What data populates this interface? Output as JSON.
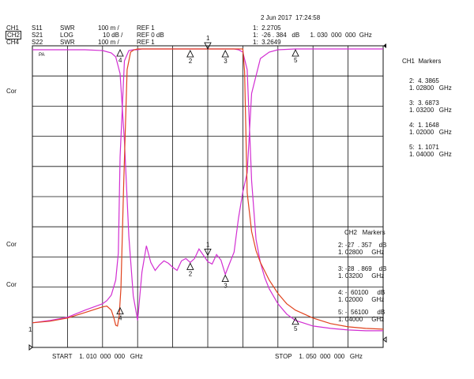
{
  "header": {
    "datetime": "2 Jun 2017  17:24:58",
    "marker_line1": "1:  2.2705",
    "marker_line2": "1:  -26 . 384   dB      1. 030  000  000  GHz",
    "marker_line3": "1:  3.2649"
  },
  "channels": [
    {
      "ch": "CH1",
      "param": "S11",
      "fmt": "SWR",
      "scale": "100 m /",
      "ref": "REF 1",
      "boxed": false
    },
    {
      "ch": "CH2",
      "param": "S21",
      "fmt": "LOG",
      "scale": "10 dB /",
      "ref": "REF 0 dB",
      "boxed": true
    },
    {
      "ch": "CH4",
      "param": "S22",
      "fmt": "SWR",
      "scale": "100 m /",
      "ref": "REF 1",
      "boxed": false
    }
  ],
  "side_labels": {
    "cor1": "Cor",
    "cor2": "Cor",
    "cor3": "Cor",
    "ref_one": "1",
    "pa": "PA"
  },
  "ch1_markers": {
    "title": "CH1  Markers",
    "entries": [
      {
        "a": "2:  4. 3865",
        "b": "1. 02800   GHz"
      },
      {
        "a": "3:  3. 6873",
        "b": "1. 03200   GHz"
      },
      {
        "a": "4:  1. 1648",
        "b": "1. 02000   GHz"
      },
      {
        "a": "5:  1. 1071",
        "b": "1. 04000   GHz"
      }
    ]
  },
  "ch2_markers": {
    "title": "CH2   Markers",
    "entries": [
      {
        "a": "2: -27  . 357    dB",
        "b": "1. 02800     GHz"
      },
      {
        "a": "3: -28  . 869    dB",
        "b": "1. 03200     GHz"
      },
      {
        "a": "4: -. 60100     dB",
        "b": "1. 02000     GHz"
      },
      {
        "a": "5: -. 56100     dB",
        "b": "1. 04000     GHz"
      }
    ]
  },
  "footer": {
    "start": "START    1. 010  000  000   GHz",
    "stop": "STOP    1. 050  000  000   GHz"
  },
  "colors": {
    "grid": "#111111",
    "magenta": "#d22ed2",
    "red": "#e0431e",
    "text": "#111111"
  },
  "chart_data": {
    "type": "line",
    "x_range_ghz": [
      1.01,
      1.05
    ],
    "grid": true,
    "divisions": {
      "x": 10,
      "y": 10
    },
    "series": [
      {
        "name": "S21",
        "color": "magenta",
        "x": [
          1.01,
          1.012,
          1.014,
          1.016,
          1.018,
          1.0185,
          1.019,
          1.0195,
          1.0198,
          1.02,
          1.0205,
          1.021,
          1.0215,
          1.022,
          1.0225,
          1.023,
          1.0235,
          1.024,
          1.0245,
          1.025,
          1.0255,
          1.026,
          1.0265,
          1.027,
          1.0275,
          1.028,
          1.0285,
          1.029,
          1.0295,
          1.03,
          1.0305,
          1.031,
          1.0315,
          1.032,
          1.0325,
          1.033,
          1.0335,
          1.034,
          1.0345,
          1.035,
          1.0355,
          1.036,
          1.0365,
          1.037,
          1.038,
          1.039,
          1.04,
          1.042,
          1.044,
          1.046,
          1.048,
          1.05
        ],
        "y": [
          -34.9,
          -34.6,
          -34.2,
          -33.3,
          -32.5,
          -32.1,
          -31.4,
          -29.5,
          -26.1,
          -14.0,
          -1.9,
          -0.6,
          -0.5,
          -0.5,
          -0.4,
          -0.4,
          -0.4,
          -0.4,
          -0.4,
          -0.4,
          -0.4,
          -0.4,
          -0.4,
          -0.4,
          -0.4,
          -0.4,
          -0.4,
          -0.4,
          -0.4,
          -0.4,
          -0.4,
          -0.4,
          -0.4,
          -0.4,
          -0.4,
          -0.4,
          -0.5,
          -0.8,
          -3.0,
          -17.0,
          -24.4,
          -27.3,
          -29.2,
          -30.6,
          -32.5,
          -33.8,
          -34.6,
          -35.3,
          -35.6,
          -35.8,
          -35.9,
          -35.9
        ]
      },
      {
        "name": "S11",
        "color": "magenta",
        "x": [
          1.01,
          1.012,
          1.014,
          1.016,
          1.018,
          1.019,
          1.0195,
          1.02,
          1.0205,
          1.021,
          1.0215,
          1.022,
          1.0225,
          1.023,
          1.0235,
          1.024,
          1.0245,
          1.025,
          1.0255,
          1.026,
          1.0265,
          1.027,
          1.0275,
          1.028,
          1.0285,
          1.029,
          1.0295,
          1.03,
          1.0305,
          1.031,
          1.0315,
          1.032,
          1.0325,
          1.033,
          1.0335,
          1.034,
          1.0345,
          1.035,
          1.036,
          1.037,
          1.038,
          1.04,
          1.042,
          1.044,
          1.046,
          1.048,
          1.05
        ],
        "y": [
          -0.5,
          -0.5,
          -0.5,
          -0.5,
          -0.6,
          -0.9,
          -1.4,
          -3.5,
          -12.0,
          -24.0,
          -31.5,
          -34.6,
          -28.5,
          -25.2,
          -27.3,
          -28.3,
          -27.6,
          -27.1,
          -27.4,
          -27.9,
          -28.3,
          -27.1,
          -26.8,
          -27.3,
          -26.8,
          -25.6,
          -26.4,
          -27.2,
          -27.5,
          -26.3,
          -27.0,
          -28.8,
          -27.4,
          -26.0,
          -21.7,
          -18.4,
          -16.0,
          -6.0,
          -1.6,
          -0.8,
          -0.5,
          -0.4,
          -0.4,
          -0.4,
          -0.4,
          -0.4,
          -0.4
        ]
      },
      {
        "name": "S22",
        "color": "red",
        "x": [
          1.01,
          1.012,
          1.014,
          1.016,
          1.018,
          1.0185,
          1.019,
          1.0193,
          1.0195,
          1.0197,
          1.0199,
          1.0201,
          1.0204,
          1.0208,
          1.0212,
          1.0216,
          1.022,
          1.024,
          1.028,
          1.032,
          1.034,
          1.0342,
          1.0345,
          1.035,
          1.0355,
          1.036,
          1.037,
          1.038,
          1.039,
          1.04,
          1.042,
          1.044,
          1.046,
          1.048,
          1.05
        ],
        "y": [
          -34.9,
          -34.7,
          -34.3,
          -33.6,
          -32.9,
          -32.8,
          -33.3,
          -34.3,
          -35.2,
          -35.3,
          -34.0,
          -30.5,
          -18.0,
          -3.0,
          -0.8,
          -0.5,
          -0.4,
          -0.4,
          -0.4,
          -0.4,
          -0.4,
          -3.2,
          -18.5,
          -23.4,
          -25.8,
          -27.3,
          -29.5,
          -31.2,
          -32.5,
          -33.3,
          -34.3,
          -35.0,
          -35.4,
          -35.6,
          -35.7
        ]
      }
    ],
    "markers": [
      {
        "label": "1",
        "x": 1.03,
        "y": -26.4,
        "pointer": "down"
      },
      {
        "label": "2",
        "x": 1.028,
        "y": -27.4,
        "pointer": "up"
      },
      {
        "label": "3",
        "x": 1.032,
        "y": -28.9,
        "pointer": "up"
      },
      {
        "label": "4",
        "x": 1.02,
        "y": -33.0,
        "pointer": "up"
      },
      {
        "label": "5",
        "x": 1.04,
        "y": -34.3,
        "pointer": "up"
      },
      {
        "label": "1",
        "x": 1.03,
        "y": -0.4,
        "pointer": "down"
      },
      {
        "label": "2",
        "x": 1.028,
        "y": -0.6,
        "pointer": "up"
      },
      {
        "label": "3",
        "x": 1.032,
        "y": -0.6,
        "pointer": "up"
      },
      {
        "label": "4",
        "x": 1.02,
        "y": -0.5,
        "pointer": "up"
      },
      {
        "label": "5",
        "x": 1.04,
        "y": -0.5,
        "pointer": "up"
      }
    ]
  }
}
